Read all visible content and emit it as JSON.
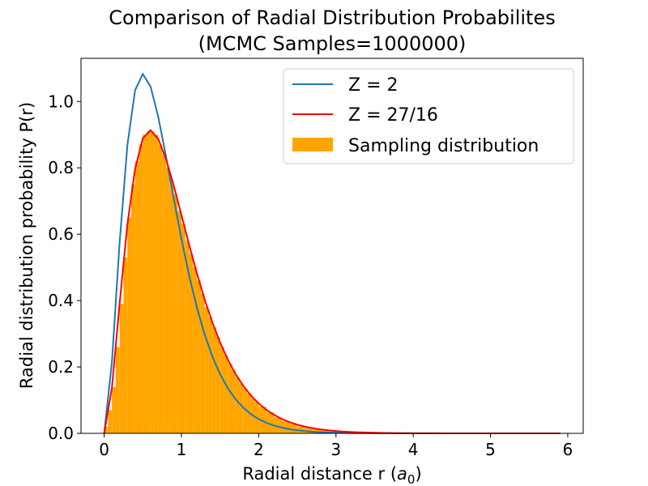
{
  "chart_data": {
    "type": "line",
    "title": "Comparison of Radial Distribution Probabilites",
    "subtitle": "(MCMC Samples=1000000)",
    "xlabel_prefix": "Radial distance r (",
    "xlabel_var": "a",
    "xlabel_sub": "0",
    "xlabel_suffix": ")",
    "ylabel": "Radial distribution probability P(r)",
    "xlim": [
      -0.3,
      6.2
    ],
    "ylim": [
      0,
      1.13
    ],
    "xticks": [
      0,
      1,
      2,
      3,
      4,
      5,
      6
    ],
    "xtick_labels": [
      "0",
      "1",
      "2",
      "3",
      "4",
      "5",
      "6"
    ],
    "yticks": [
      0.0,
      0.2,
      0.4,
      0.6,
      0.8,
      1.0
    ],
    "ytick_labels": [
      "0.0",
      "0.2",
      "0.4",
      "0.6",
      "0.8",
      "1.0"
    ],
    "grid": false,
    "legend_position": "top-right",
    "series": [
      {
        "name": "Z = 2",
        "type": "line",
        "color": "#1f77b4",
        "Z": 2,
        "x_range": [
          0,
          5.9
        ],
        "x_step": 0.1
      },
      {
        "name": "Z = 27/16",
        "type": "line",
        "color": "#ff0000",
        "Z": 1.6875,
        "x_range": [
          0,
          5.9
        ],
        "x_step": 0.1
      }
    ],
    "histogram": {
      "name": "Sampling distribution",
      "color": "#ffa500",
      "bin_edges": [
        0,
        0.05,
        0.1,
        0.15,
        0.2,
        0.25,
        0.3,
        0.35,
        0.4,
        0.45,
        0.5,
        0.55,
        0.6,
        0.65,
        0.7,
        0.75,
        0.8,
        0.85,
        0.9,
        0.95,
        1.0,
        1.05,
        1.1,
        1.15,
        1.2,
        1.25,
        1.3,
        1.35,
        1.4,
        1.45,
        1.5,
        1.55,
        1.6,
        1.65,
        1.7,
        1.75,
        1.8,
        1.85,
        1.9,
        1.95,
        2.0,
        2.1,
        2.2,
        2.3,
        2.4,
        2.5,
        2.6,
        2.7,
        2.8,
        2.9,
        3.0,
        3.2,
        3.4,
        3.6,
        3.8,
        4.0,
        4.5,
        5.0
      ],
      "heights": [
        0.02,
        0.07,
        0.14,
        0.26,
        0.39,
        0.53,
        0.65,
        0.75,
        0.82,
        0.87,
        0.9,
        0.91,
        0.91,
        0.9,
        0.87,
        0.84,
        0.8,
        0.76,
        0.72,
        0.67,
        0.63,
        0.58,
        0.54,
        0.5,
        0.46,
        0.42,
        0.38,
        0.35,
        0.32,
        0.29,
        0.26,
        0.235,
        0.21,
        0.19,
        0.17,
        0.15,
        0.135,
        0.12,
        0.105,
        0.095,
        0.08,
        0.063,
        0.048,
        0.037,
        0.028,
        0.021,
        0.016,
        0.012,
        0.009,
        0.006,
        0.004,
        0.002,
        0.001,
        0.0007,
        0.0004,
        0.0002,
        0.0001
      ]
    }
  }
}
